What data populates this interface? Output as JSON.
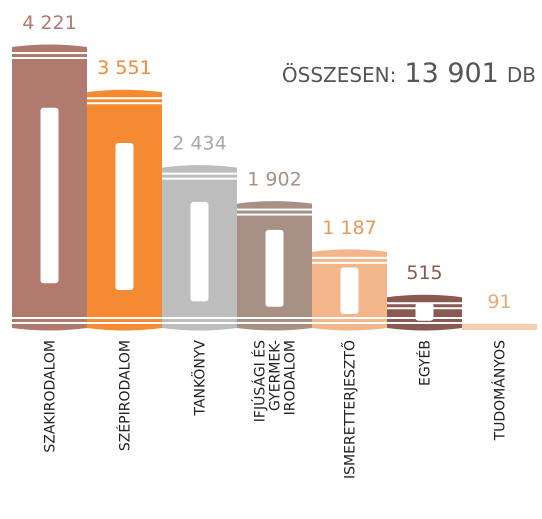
{
  "chart_data": {
    "type": "book-bar",
    "total_label": "ÖSSZESEN:",
    "total_value": "13 901",
    "total_unit": "DB",
    "categories": [
      "SZAKIRODALOM",
      "SZÉPIRODALOM",
      "TANKÖNYV",
      [
        "IFJÚSÁGI ÉS",
        "GYERMEK-",
        "IRODALOM"
      ],
      "ISMERETTERJESZTŐ",
      "EGYÉB",
      "TUDOMÁNYOS"
    ],
    "values": [
      4221,
      3551,
      2434,
      1902,
      1187,
      515,
      91
    ],
    "value_labels": [
      "4 221",
      "3 551",
      "2 434",
      "1 902",
      "1 187",
      "515",
      "91"
    ],
    "colors": [
      "#b07a6f",
      "#f58a33",
      "#bdbdbd",
      "#a89084",
      "#f2b68a",
      "#8a5a52",
      "#f6cfb0"
    ],
    "label_colors": [
      "#b07a6f",
      "#f58a33",
      "#a8a8a8",
      "#a89084",
      "#e89a5a",
      "#8a5a52",
      "#e8a878"
    ]
  }
}
